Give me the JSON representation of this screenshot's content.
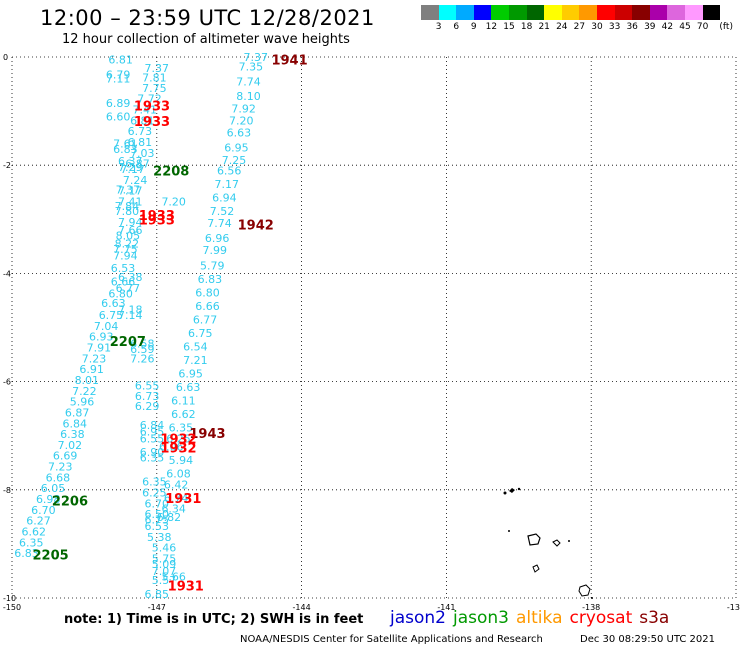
{
  "header": {
    "title": "12:00 – 23:59 UTC 12/28/2021",
    "subtitle": "12 hour collection of altimeter wave heights"
  },
  "legend": {
    "unit": "(ft)",
    "colors": [
      "#7f7f7f",
      "#00ffff",
      "#00aaff",
      "#0000ff",
      "#00cc00",
      "#009900",
      "#006600",
      "#ffff00",
      "#ffcc00",
      "#ff9900",
      "#ff0000",
      "#cc0000",
      "#880000",
      "#aa00aa",
      "#dd66dd",
      "#ff99ff",
      "#000000"
    ],
    "labels": [
      "3",
      "6",
      "9",
      "12",
      "15",
      "18",
      "21",
      "24",
      "27",
      "30",
      "33",
      "36",
      "39",
      "42",
      "45",
      "70"
    ]
  },
  "map": {
    "lon_ticks": [
      "-150",
      "-147",
      "-144",
      "-141",
      "-138",
      "-135"
    ],
    "lat_ticks": [
      "0",
      "-2",
      "-4",
      "-6",
      "-8",
      "-10"
    ],
    "lon_range": [
      -150,
      -135
    ],
    "lat_range": [
      0,
      -10
    ],
    "land_color": "#000000",
    "grid": "dotted"
  },
  "observation_color": "#33ccee",
  "observations": [
    {
      "lon": -147.75,
      "lat": -0.05,
      "v": "6.81"
    },
    {
      "lon": -147.8,
      "lat": -0.32,
      "v": "6.79"
    },
    {
      "lon": -147.8,
      "lat": -0.4,
      "v": "7.11"
    },
    {
      "lon": -147.8,
      "lat": -0.85,
      "v": "6.89"
    },
    {
      "lon": -147.8,
      "lat": -1.1,
      "v": "6.60"
    },
    {
      "lon": -147.65,
      "lat": -1.6,
      "v": "7.61"
    },
    {
      "lon": -147.65,
      "lat": -1.7,
      "v": "6.83"
    },
    {
      "lon": -147.55,
      "lat": -1.92,
      "v": "6.37"
    },
    {
      "lon": -147.55,
      "lat": -2.03,
      "v": "7.29"
    },
    {
      "lon": -147.6,
      "lat": -2.45,
      "v": "7.37"
    },
    {
      "lon": -147.62,
      "lat": -2.75,
      "v": "7.84"
    },
    {
      "lon": -147.62,
      "lat": -2.85,
      "v": "7.80"
    },
    {
      "lon": -147.55,
      "lat": -3.05,
      "v": "7.94"
    },
    {
      "lon": -147.55,
      "lat": -3.2,
      "v": "7.66"
    },
    {
      "lon": -147.6,
      "lat": -3.3,
      "v": "8.05"
    },
    {
      "lon": -147.62,
      "lat": -3.45,
      "v": "8.22"
    },
    {
      "lon": -147.65,
      "lat": -3.67,
      "v": "7.94"
    },
    {
      "lon": -147.7,
      "lat": -3.9,
      "v": "6.53"
    },
    {
      "lon": -147.7,
      "lat": -4.15,
      "v": "6.66"
    },
    {
      "lon": -147.75,
      "lat": -4.37,
      "v": "6.80"
    },
    {
      "lon": -147.9,
      "lat": -4.55,
      "v": "6.63"
    },
    {
      "lon": -147.95,
      "lat": -4.77,
      "v": "6.75"
    },
    {
      "lon": -148.05,
      "lat": -4.97,
      "v": "7.04"
    },
    {
      "lon": -148.15,
      "lat": -5.17,
      "v": "6.93"
    },
    {
      "lon": -148.2,
      "lat": -5.37,
      "v": "7.91"
    },
    {
      "lon": -148.3,
      "lat": -5.57,
      "v": "7.23"
    },
    {
      "lon": -148.35,
      "lat": -5.77,
      "v": "6.91"
    },
    {
      "lon": -148.45,
      "lat": -5.97,
      "v": "8.01"
    },
    {
      "lon": -148.5,
      "lat": -6.17,
      "v": "7.22"
    },
    {
      "lon": -148.55,
      "lat": -6.37,
      "v": "5.96"
    },
    {
      "lon": -148.65,
      "lat": -6.57,
      "v": "6.87"
    },
    {
      "lon": -148.7,
      "lat": -6.77,
      "v": "6.84"
    },
    {
      "lon": -148.75,
      "lat": -6.97,
      "v": "6.38"
    },
    {
      "lon": -148.8,
      "lat": -7.17,
      "v": "7.02"
    },
    {
      "lon": -148.9,
      "lat": -7.37,
      "v": "6.69"
    },
    {
      "lon": -149.0,
      "lat": -7.57,
      "v": "7.23"
    },
    {
      "lon": -149.05,
      "lat": -7.77,
      "v": "6.68"
    },
    {
      "lon": -149.15,
      "lat": -7.97,
      "v": "6.05"
    },
    {
      "lon": -149.25,
      "lat": -8.17,
      "v": "6.98"
    },
    {
      "lon": -149.35,
      "lat": -8.37,
      "v": "6.70"
    },
    {
      "lon": -149.45,
      "lat": -8.57,
      "v": "6.27"
    },
    {
      "lon": -149.55,
      "lat": -8.77,
      "v": "6.62"
    },
    {
      "lon": -149.6,
      "lat": -8.97,
      "v": "6.35"
    },
    {
      "lon": -149.7,
      "lat": -9.17,
      "v": "6.83"
    },
    {
      "lon": -147.0,
      "lat": -0.2,
      "v": "7.37"
    },
    {
      "lon": -147.05,
      "lat": -0.38,
      "v": "7.81"
    },
    {
      "lon": -147.05,
      "lat": -0.57,
      "v": "7.75"
    },
    {
      "lon": -147.15,
      "lat": -0.77,
      "v": "7.72"
    },
    {
      "lon": -147.25,
      "lat": -0.97,
      "v": "7.41"
    },
    {
      "lon": -147.3,
      "lat": -1.17,
      "v": "6.81"
    },
    {
      "lon": -147.35,
      "lat": -1.37,
      "v": "6.73"
    },
    {
      "lon": -147.35,
      "lat": -1.57,
      "v": "6.81"
    },
    {
      "lon": -147.3,
      "lat": -1.77,
      "v": "7.03"
    },
    {
      "lon": -147.4,
      "lat": -1.97,
      "v": "6.87"
    },
    {
      "lon": -147.5,
      "lat": -2.07,
      "v": "7.17"
    },
    {
      "lon": -147.45,
      "lat": -2.27,
      "v": "7.24"
    },
    {
      "lon": -147.55,
      "lat": -2.47,
      "v": "7.17"
    },
    {
      "lon": -147.55,
      "lat": -2.67,
      "v": "7.41"
    },
    {
      "lon": -147.65,
      "lat": -3.55,
      "v": "7.75"
    },
    {
      "lon": -147.55,
      "lat": -4.07,
      "v": "6.38"
    },
    {
      "lon": -147.6,
      "lat": -4.27,
      "v": "6.77"
    },
    {
      "lon": -147.55,
      "lat": -4.67,
      "v": "7.18"
    },
    {
      "lon": -147.55,
      "lat": -4.77,
      "v": "7.14"
    },
    {
      "lon": -147.3,
      "lat": -5.3,
      "v": "6.58"
    },
    {
      "lon": -147.3,
      "lat": -5.4,
      "v": "6.59"
    },
    {
      "lon": -147.3,
      "lat": -5.57,
      "v": "7.26"
    },
    {
      "lon": -147.2,
      "lat": -6.07,
      "v": "6.55"
    },
    {
      "lon": -147.2,
      "lat": -6.27,
      "v": "6.73"
    },
    {
      "lon": -147.2,
      "lat": -6.45,
      "v": "6.29"
    },
    {
      "lon": -147.1,
      "lat": -6.8,
      "v": "6.84"
    },
    {
      "lon": -147.1,
      "lat": -6.92,
      "v": "6.95"
    },
    {
      "lon": -147.1,
      "lat": -7.05,
      "v": "6.55"
    },
    {
      "lon": -147.1,
      "lat": -7.3,
      "v": "6.90"
    },
    {
      "lon": -147.1,
      "lat": -7.4,
      "v": "6.35"
    },
    {
      "lon": -147.05,
      "lat": -7.85,
      "v": "6.35"
    },
    {
      "lon": -147.05,
      "lat": -8.05,
      "v": "6.25"
    },
    {
      "lon": -147.0,
      "lat": -8.25,
      "v": "6.70"
    },
    {
      "lon": -147.0,
      "lat": -8.45,
      "v": "6.50"
    },
    {
      "lon": -147.0,
      "lat": -8.55,
      "v": "6.75"
    },
    {
      "lon": -147.0,
      "lat": -8.67,
      "v": "6.53"
    },
    {
      "lon": -146.95,
      "lat": -8.87,
      "v": "5.38"
    },
    {
      "lon": -146.85,
      "lat": -9.07,
      "v": "5.46"
    },
    {
      "lon": -146.85,
      "lat": -9.27,
      "v": "5.75"
    },
    {
      "lon": -146.85,
      "lat": -9.37,
      "v": "5.09"
    },
    {
      "lon": -146.85,
      "lat": -9.5,
      "v": "7.07"
    },
    {
      "lon": -146.85,
      "lat": -9.67,
      "v": "5.57"
    },
    {
      "lon": -147.0,
      "lat": -9.93,
      "v": "6.85"
    },
    {
      "lon": -146.65,
      "lat": -2.67,
      "v": "7.20"
    },
    {
      "lon": -146.7,
      "lat": -7.2,
      "v": "6.06"
    },
    {
      "lon": -146.55,
      "lat": -7.7,
      "v": "6.08"
    },
    {
      "lon": -146.6,
      "lat": -7.9,
      "v": "6.42"
    },
    {
      "lon": -146.6,
      "lat": -8.15,
      "v": "6.74"
    },
    {
      "lon": -146.65,
      "lat": -8.35,
      "v": "6.34"
    },
    {
      "lon": -146.75,
      "lat": -8.5,
      "v": "6.82"
    },
    {
      "lon": -146.65,
      "lat": -9.6,
      "v": "5.66"
    },
    {
      "lon": -144.95,
      "lat": 0.0,
      "v": "7.37"
    },
    {
      "lon": -145.05,
      "lat": -0.18,
      "v": "7.35"
    },
    {
      "lon": -145.1,
      "lat": -0.45,
      "v": "7.74"
    },
    {
      "lon": -145.1,
      "lat": -0.72,
      "v": "8.10"
    },
    {
      "lon": -145.2,
      "lat": -0.95,
      "v": "7.92"
    },
    {
      "lon": -145.25,
      "lat": -1.17,
      "v": "7.20"
    },
    {
      "lon": -145.3,
      "lat": -1.4,
      "v": "6.63"
    },
    {
      "lon": -145.35,
      "lat": -1.67,
      "v": "6.95"
    },
    {
      "lon": -145.4,
      "lat": -1.9,
      "v": "7.25"
    },
    {
      "lon": -145.5,
      "lat": -2.1,
      "v": "6.56"
    },
    {
      "lon": -145.55,
      "lat": -2.35,
      "v": "7.17"
    },
    {
      "lon": -145.6,
      "lat": -2.6,
      "v": "6.94"
    },
    {
      "lon": -145.65,
      "lat": -2.85,
      "v": "7.52"
    },
    {
      "lon": -145.7,
      "lat": -3.07,
      "v": "7.74"
    },
    {
      "lon": -145.75,
      "lat": -3.35,
      "v": "6.96"
    },
    {
      "lon": -145.8,
      "lat": -3.57,
      "v": "7.99"
    },
    {
      "lon": -145.85,
      "lat": -3.85,
      "v": "5.79"
    },
    {
      "lon": -145.9,
      "lat": -4.1,
      "v": "6.83"
    },
    {
      "lon": -145.95,
      "lat": -4.35,
      "v": "6.80"
    },
    {
      "lon": -145.95,
      "lat": -4.6,
      "v": "6.66"
    },
    {
      "lon": -146.0,
      "lat": -4.85,
      "v": "6.77"
    },
    {
      "lon": -146.1,
      "lat": -5.1,
      "v": "6.75"
    },
    {
      "lon": -146.2,
      "lat": -5.35,
      "v": "6.54"
    },
    {
      "lon": -146.2,
      "lat": -5.6,
      "v": "7.21"
    },
    {
      "lon": -146.3,
      "lat": -5.85,
      "v": "6.95"
    },
    {
      "lon": -146.35,
      "lat": -6.1,
      "v": "6.63"
    },
    {
      "lon": -146.45,
      "lat": -6.35,
      "v": "6.11"
    },
    {
      "lon": -146.45,
      "lat": -6.6,
      "v": "6.62"
    },
    {
      "lon": -146.5,
      "lat": -6.85,
      "v": "6.35"
    },
    {
      "lon": -146.55,
      "lat": -7.05,
      "v": "6.25"
    },
    {
      "lon": -146.5,
      "lat": -7.45,
      "v": "5.94"
    }
  ],
  "pass_times": [
    {
      "lon": -144.25,
      "lat": -0.05,
      "t": "1941",
      "color": "#880000"
    },
    {
      "lon": -147.1,
      "lat": -0.9,
      "t": "1933",
      "color": "#ff0000"
    },
    {
      "lon": -147.1,
      "lat": -1.18,
      "t": "1933",
      "color": "#ff0000"
    },
    {
      "lon": -146.7,
      "lat": -2.1,
      "t": "2208",
      "color": "#006600"
    },
    {
      "lon": -147.0,
      "lat": -2.92,
      "t": "1933",
      "color": "#ff0000"
    },
    {
      "lon": -147.0,
      "lat": -3.0,
      "t": "1933",
      "color": "#ff0000"
    },
    {
      "lon": -144.95,
      "lat": -3.1,
      "t": "1942",
      "color": "#880000"
    },
    {
      "lon": -147.6,
      "lat": -5.25,
      "t": "2207",
      "color": "#006600"
    },
    {
      "lon": -145.95,
      "lat": -6.95,
      "t": "1943",
      "color": "#880000"
    },
    {
      "lon": -146.55,
      "lat": -7.05,
      "t": "1932",
      "color": "#ff0000"
    },
    {
      "lon": -146.55,
      "lat": -7.22,
      "t": "1932",
      "color": "#ff0000"
    },
    {
      "lon": -146.45,
      "lat": -8.15,
      "t": "1931",
      "color": "#ff0000"
    },
    {
      "lon": -148.8,
      "lat": -8.2,
      "t": "2206",
      "color": "#006600"
    },
    {
      "lon": -149.2,
      "lat": -9.2,
      "t": "2205",
      "color": "#006600"
    },
    {
      "lon": -146.4,
      "lat": -9.77,
      "t": "1931",
      "color": "#ff0000"
    }
  ],
  "footer": {
    "note": "note: 1) Time is in UTC; 2) SWH is in feet",
    "satellites": [
      {
        "name": "jason2",
        "color": "#0000cc"
      },
      {
        "name": "jason3",
        "color": "#009900"
      },
      {
        "name": "altika",
        "color": "#ff9900"
      },
      {
        "name": "cryosat",
        "color": "#ff0000"
      },
      {
        "name": "s3a",
        "color": "#880000"
      }
    ],
    "credit": "NOAA/NESDIS Center for Satellite Applications and Research",
    "timestamp": "Dec 30 08:29:50 UTC 2021"
  }
}
